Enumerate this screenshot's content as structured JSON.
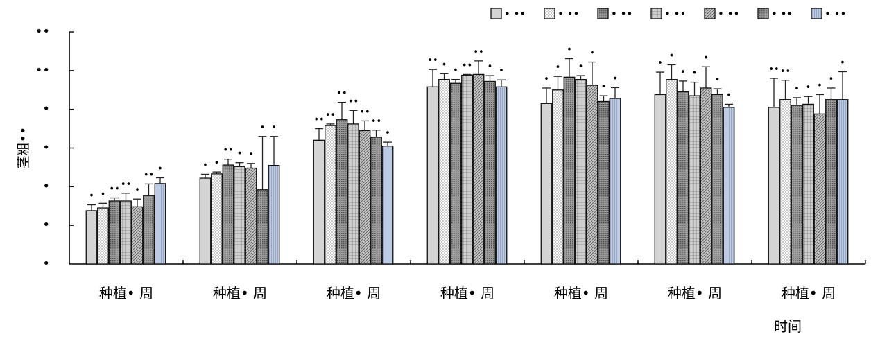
{
  "chart_data": {
    "type": "bar",
    "title": "",
    "ylabel": "茎粗••",
    "xlabel": "时间",
    "categories": [
      "种植• 周",
      "种植• 周",
      "种植• 周",
      "种植• 周",
      "种植• 周",
      "种植• 周",
      "种植• 周"
    ],
    "y_tick_labels": [
      "••",
      "••",
      "•",
      "•",
      "•",
      "•",
      "•"
    ],
    "ylim": [
      0,
      6
    ],
    "legend": {
      "position": "top-right"
    },
    "series": [
      {
        "name": "• ••",
        "color": "#d4d4d4",
        "pattern": "solid",
        "values": [
          1.38,
          2.22,
          3.2,
          4.58,
          4.15,
          4.38,
          4.05
        ],
        "errors": [
          0.15,
          0.1,
          0.3,
          0.45,
          0.4,
          0.58,
          0.75
        ],
        "sig": [
          "•",
          "•",
          "••",
          "••",
          "•",
          "•",
          "••"
        ]
      },
      {
        "name": "• ••",
        "color": "#f7f7f7",
        "pattern": "dots",
        "values": [
          1.45,
          2.33,
          3.58,
          4.77,
          4.5,
          4.77,
          4.25
        ],
        "errors": [
          0.12,
          0.05,
          0.04,
          0.15,
          0.35,
          0.38,
          0.5
        ],
        "sig": [
          "•",
          "•",
          "••",
          "•",
          "•",
          "•",
          "••"
        ]
      },
      {
        "name": "• ••",
        "color": "#8a8a8a",
        "pattern": "dense",
        "values": [
          1.63,
          2.56,
          3.73,
          4.67,
          4.83,
          4.45,
          4.1
        ],
        "errors": [
          0.08,
          0.15,
          0.45,
          0.1,
          0.48,
          0.28,
          0.2
        ],
        "sig": [
          "••",
          "••",
          "••",
          "•",
          "•",
          "•",
          "•"
        ]
      },
      {
        "name": "• ••",
        "color": "#bbbbbb",
        "pattern": "grid",
        "values": [
          1.63,
          2.52,
          3.62,
          4.88,
          4.77,
          4.35,
          4.13
        ],
        "errors": [
          0.2,
          0.1,
          0.35,
          0.02,
          0.1,
          0.35,
          0.2
        ],
        "sig": [
          "••",
          "•",
          "••",
          "••",
          "•",
          "•",
          "•"
        ]
      },
      {
        "name": "• ••",
        "color": "#a8a8a8",
        "pattern": "diagonal",
        "values": [
          1.48,
          2.48,
          3.45,
          4.9,
          4.62,
          4.55,
          3.88
        ],
        "errors": [
          0.2,
          0.12,
          0.25,
          0.35,
          0.6,
          0.55,
          0.5
        ],
        "sig": [
          "•",
          "•",
          "••",
          "••",
          "•",
          "•",
          "•"
        ]
      },
      {
        "name": "• ••",
        "color": "#777777",
        "pattern": "dense",
        "values": [
          1.77,
          1.92,
          3.28,
          4.72,
          4.2,
          4.38,
          4.25
        ],
        "errors": [
          0.3,
          1.38,
          0.18,
          0.15,
          0.15,
          0.15,
          0.3
        ],
        "sig": [
          "••",
          "•",
          "••",
          "•",
          "•",
          "•",
          "•"
        ]
      },
      {
        "name": "• ••",
        "color": "#b7c6de",
        "pattern": "hatch",
        "values": [
          2.08,
          2.55,
          3.05,
          4.58,
          4.28,
          4.05,
          4.25
        ],
        "errors": [
          0.15,
          0.75,
          0.1,
          0.18,
          0.28,
          0.08,
          0.72
        ],
        "sig": [
          "•",
          "•",
          "•",
          "•",
          "•",
          "•",
          "•"
        ]
      }
    ]
  }
}
